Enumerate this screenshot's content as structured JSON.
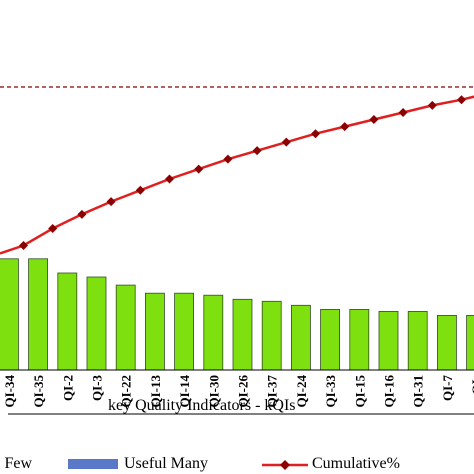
{
  "chart_data": {
    "type": "bar",
    "categories": [
      "QI-34",
      "QI-35",
      "QI-2",
      "QI-3",
      "QI-22",
      "QI-13",
      "QI-14",
      "QI-30",
      "QI-26",
      "QI-37",
      "QI-24",
      "QI-33",
      "QI-15",
      "QI-16",
      "QI-31",
      "QI-7",
      "QI-"
    ],
    "series": [
      {
        "name": "Vital Few",
        "kind": "bar",
        "color": "#7fe010",
        "values": [
          5.5,
          5.5,
          4.8,
          4.6,
          4.2,
          3.8,
          3.8,
          3.7,
          3.5,
          3.4,
          3.2,
          3.0,
          3.0,
          2.9,
          2.9,
          2.7,
          2.7
        ]
      },
      {
        "name": "Cumulative%",
        "kind": "line",
        "color": "#e02020",
        "marker_color": "#8b0000",
        "values": [
          44,
          50,
          55,
          59.5,
          63.5,
          67.5,
          71,
          74.5,
          77.5,
          80.5,
          83.5,
          86,
          88.5,
          91,
          93.5,
          95.5,
          98
        ]
      }
    ],
    "reference_line": 100,
    "bar_axis": {
      "min": 0,
      "max": 14
    },
    "line_axis": {
      "min": 0,
      "max": 100
    },
    "xlabel": "key Quality Indicators - kQIs",
    "legend": {
      "placement": "bottom",
      "items": [
        {
          "label": "l Few",
          "swatch": "bar",
          "color": "#7fe010"
        },
        {
          "label": "Useful Many",
          "swatch": "bar",
          "color": "#5a78c8"
        },
        {
          "label": "Cumulative%",
          "swatch": "line",
          "color": "#e02020"
        }
      ]
    }
  }
}
